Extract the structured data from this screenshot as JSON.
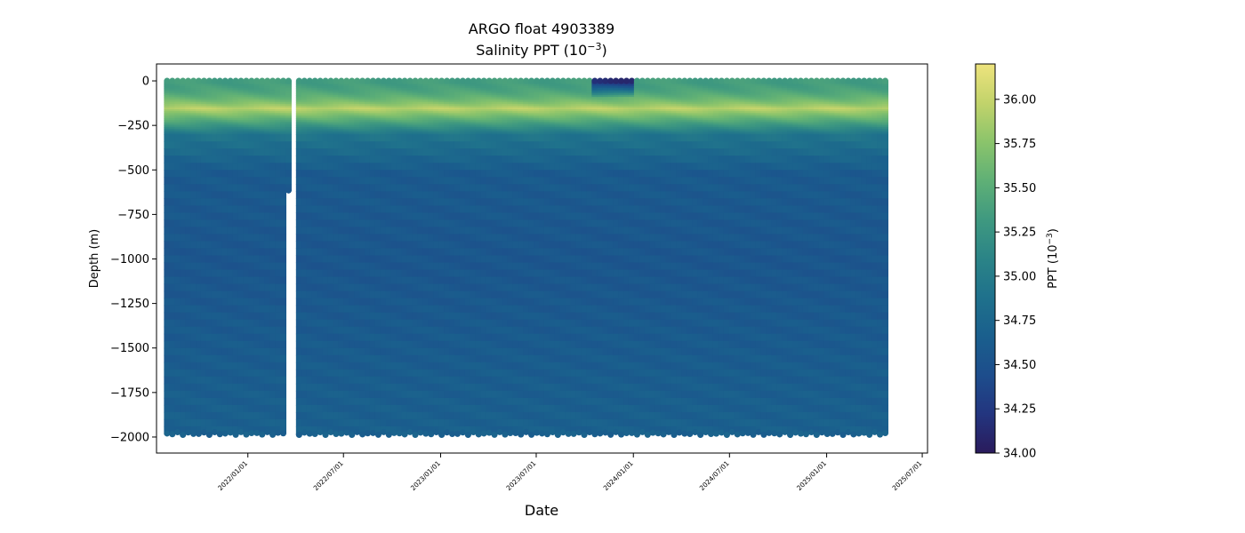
{
  "chart_data": {
    "type": "scatter",
    "title": "ARGO float 4903389",
    "subtitle_prefix": "Salinity PPT (10",
    "subtitle_exp": "−3",
    "subtitle_suffix": ")",
    "xlabel": "Date",
    "ylabel": "Depth (m)",
    "colorbar_label_prefix": "PPT (10",
    "colorbar_label_exp": "−3",
    "colorbar_label_suffix": ")",
    "x_range_days_from_2021_08_01": [
      -20,
      1440
    ],
    "ylim": [
      -2090,
      95
    ],
    "x_ticks": [
      {
        "label": "2022/01/01",
        "day": 153
      },
      {
        "label": "2022/07/01",
        "day": 334
      },
      {
        "label": "2023/01/01",
        "day": 518
      },
      {
        "label": "2023/07/01",
        "day": 699
      },
      {
        "label": "2024/01/01",
        "day": 883
      },
      {
        "label": "2024/07/01",
        "day": 1065
      },
      {
        "label": "2025/01/01",
        "day": 1249
      },
      {
        "label": "2025/07/01",
        "day": 1430
      }
    ],
    "y_ticks": [
      {
        "label": "0",
        "value": 0
      },
      {
        "label": "−250",
        "value": -250
      },
      {
        "label": "−500",
        "value": -500
      },
      {
        "label": "−750",
        "value": -750
      },
      {
        "label": "−1000",
        "value": -1000
      },
      {
        "label": "−1250",
        "value": -1250
      },
      {
        "label": "−1500",
        "value": -1500
      },
      {
        "label": "−1750",
        "value": -1750
      },
      {
        "label": "−2000",
        "value": -2000
      }
    ],
    "colorbar": {
      "range": [
        34.0,
        36.2
      ],
      "ticks": [
        {
          "label": "34.00",
          "value": 34.0
        },
        {
          "label": "34.25",
          "value": 34.25
        },
        {
          "label": "34.50",
          "value": 34.5
        },
        {
          "label": "34.75",
          "value": 34.75
        },
        {
          "label": "35.00",
          "value": 35.0
        },
        {
          "label": "35.25",
          "value": 35.25
        },
        {
          "label": "35.50",
          "value": 35.5
        },
        {
          "label": "35.75",
          "value": 35.75
        },
        {
          "label": "36.00",
          "value": 36.0
        }
      ],
      "colormap": [
        "#2a1b5c",
        "#23357f",
        "#1d4d8c",
        "#1a5f8d",
        "#1f718c",
        "#2b8487",
        "#3f9980",
        "#5fb076",
        "#8bc46b",
        "#c2d36b",
        "#eee37d"
      ]
    },
    "profile_interval_days": 10,
    "first_profile_day": 0,
    "last_profile_day": 1360,
    "missing_profile_days": [
      240
    ],
    "short_profile": {
      "day": 230,
      "max_depth": -615
    },
    "profile_salinity": {
      "surface": 35.35,
      "halocline_depth": -150,
      "halocline_max": 35.95,
      "depth_300": 34.9,
      "depth_500": 34.6,
      "depth_1000": 34.55,
      "depth_2000": 34.68,
      "max_depth": -1980
    },
    "fresh_surface_event": {
      "day_start": 805,
      "day_end": 880,
      "surface": 34.15
    }
  }
}
